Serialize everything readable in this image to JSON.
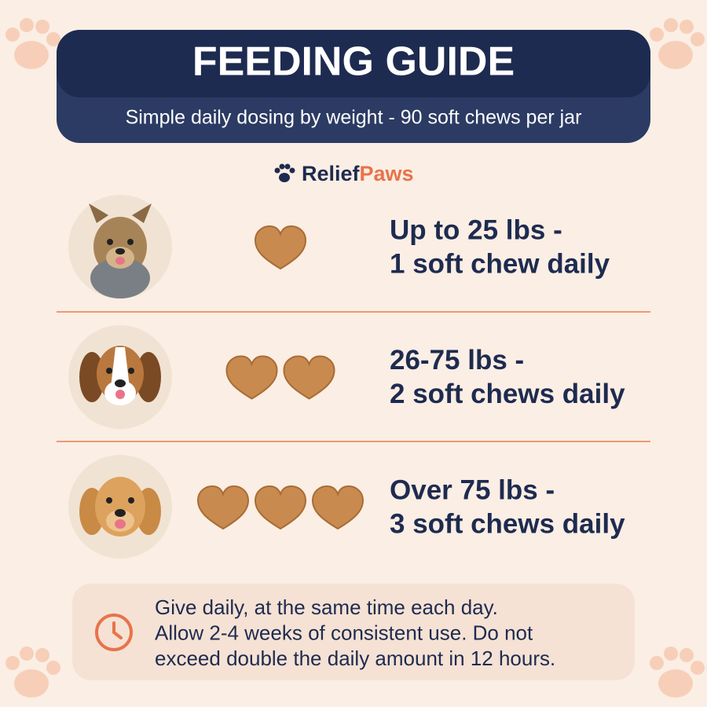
{
  "header": {
    "title": "FEEDING GUIDE",
    "subtitle": "Simple daily dosing by weight - 90 soft chews per jar"
  },
  "brand": {
    "part1": "Relief",
    "part2": "Paws"
  },
  "rows": [
    {
      "line1": "Up to 25 lbs -",
      "line2": "1 soft chew daily",
      "chews": 1
    },
    {
      "line1": "26-75 lbs -",
      "line2": "2 soft chews daily",
      "chews": 2
    },
    {
      "line1": "Over 75 lbs -",
      "line2": "3 soft chews daily",
      "chews": 3
    }
  ],
  "note": {
    "lines": [
      "Give daily, at the same time each day.",
      "Allow 2-4 weeks of consistent use. Do not",
      "exceed double the daily amount in 12 hours."
    ]
  }
}
